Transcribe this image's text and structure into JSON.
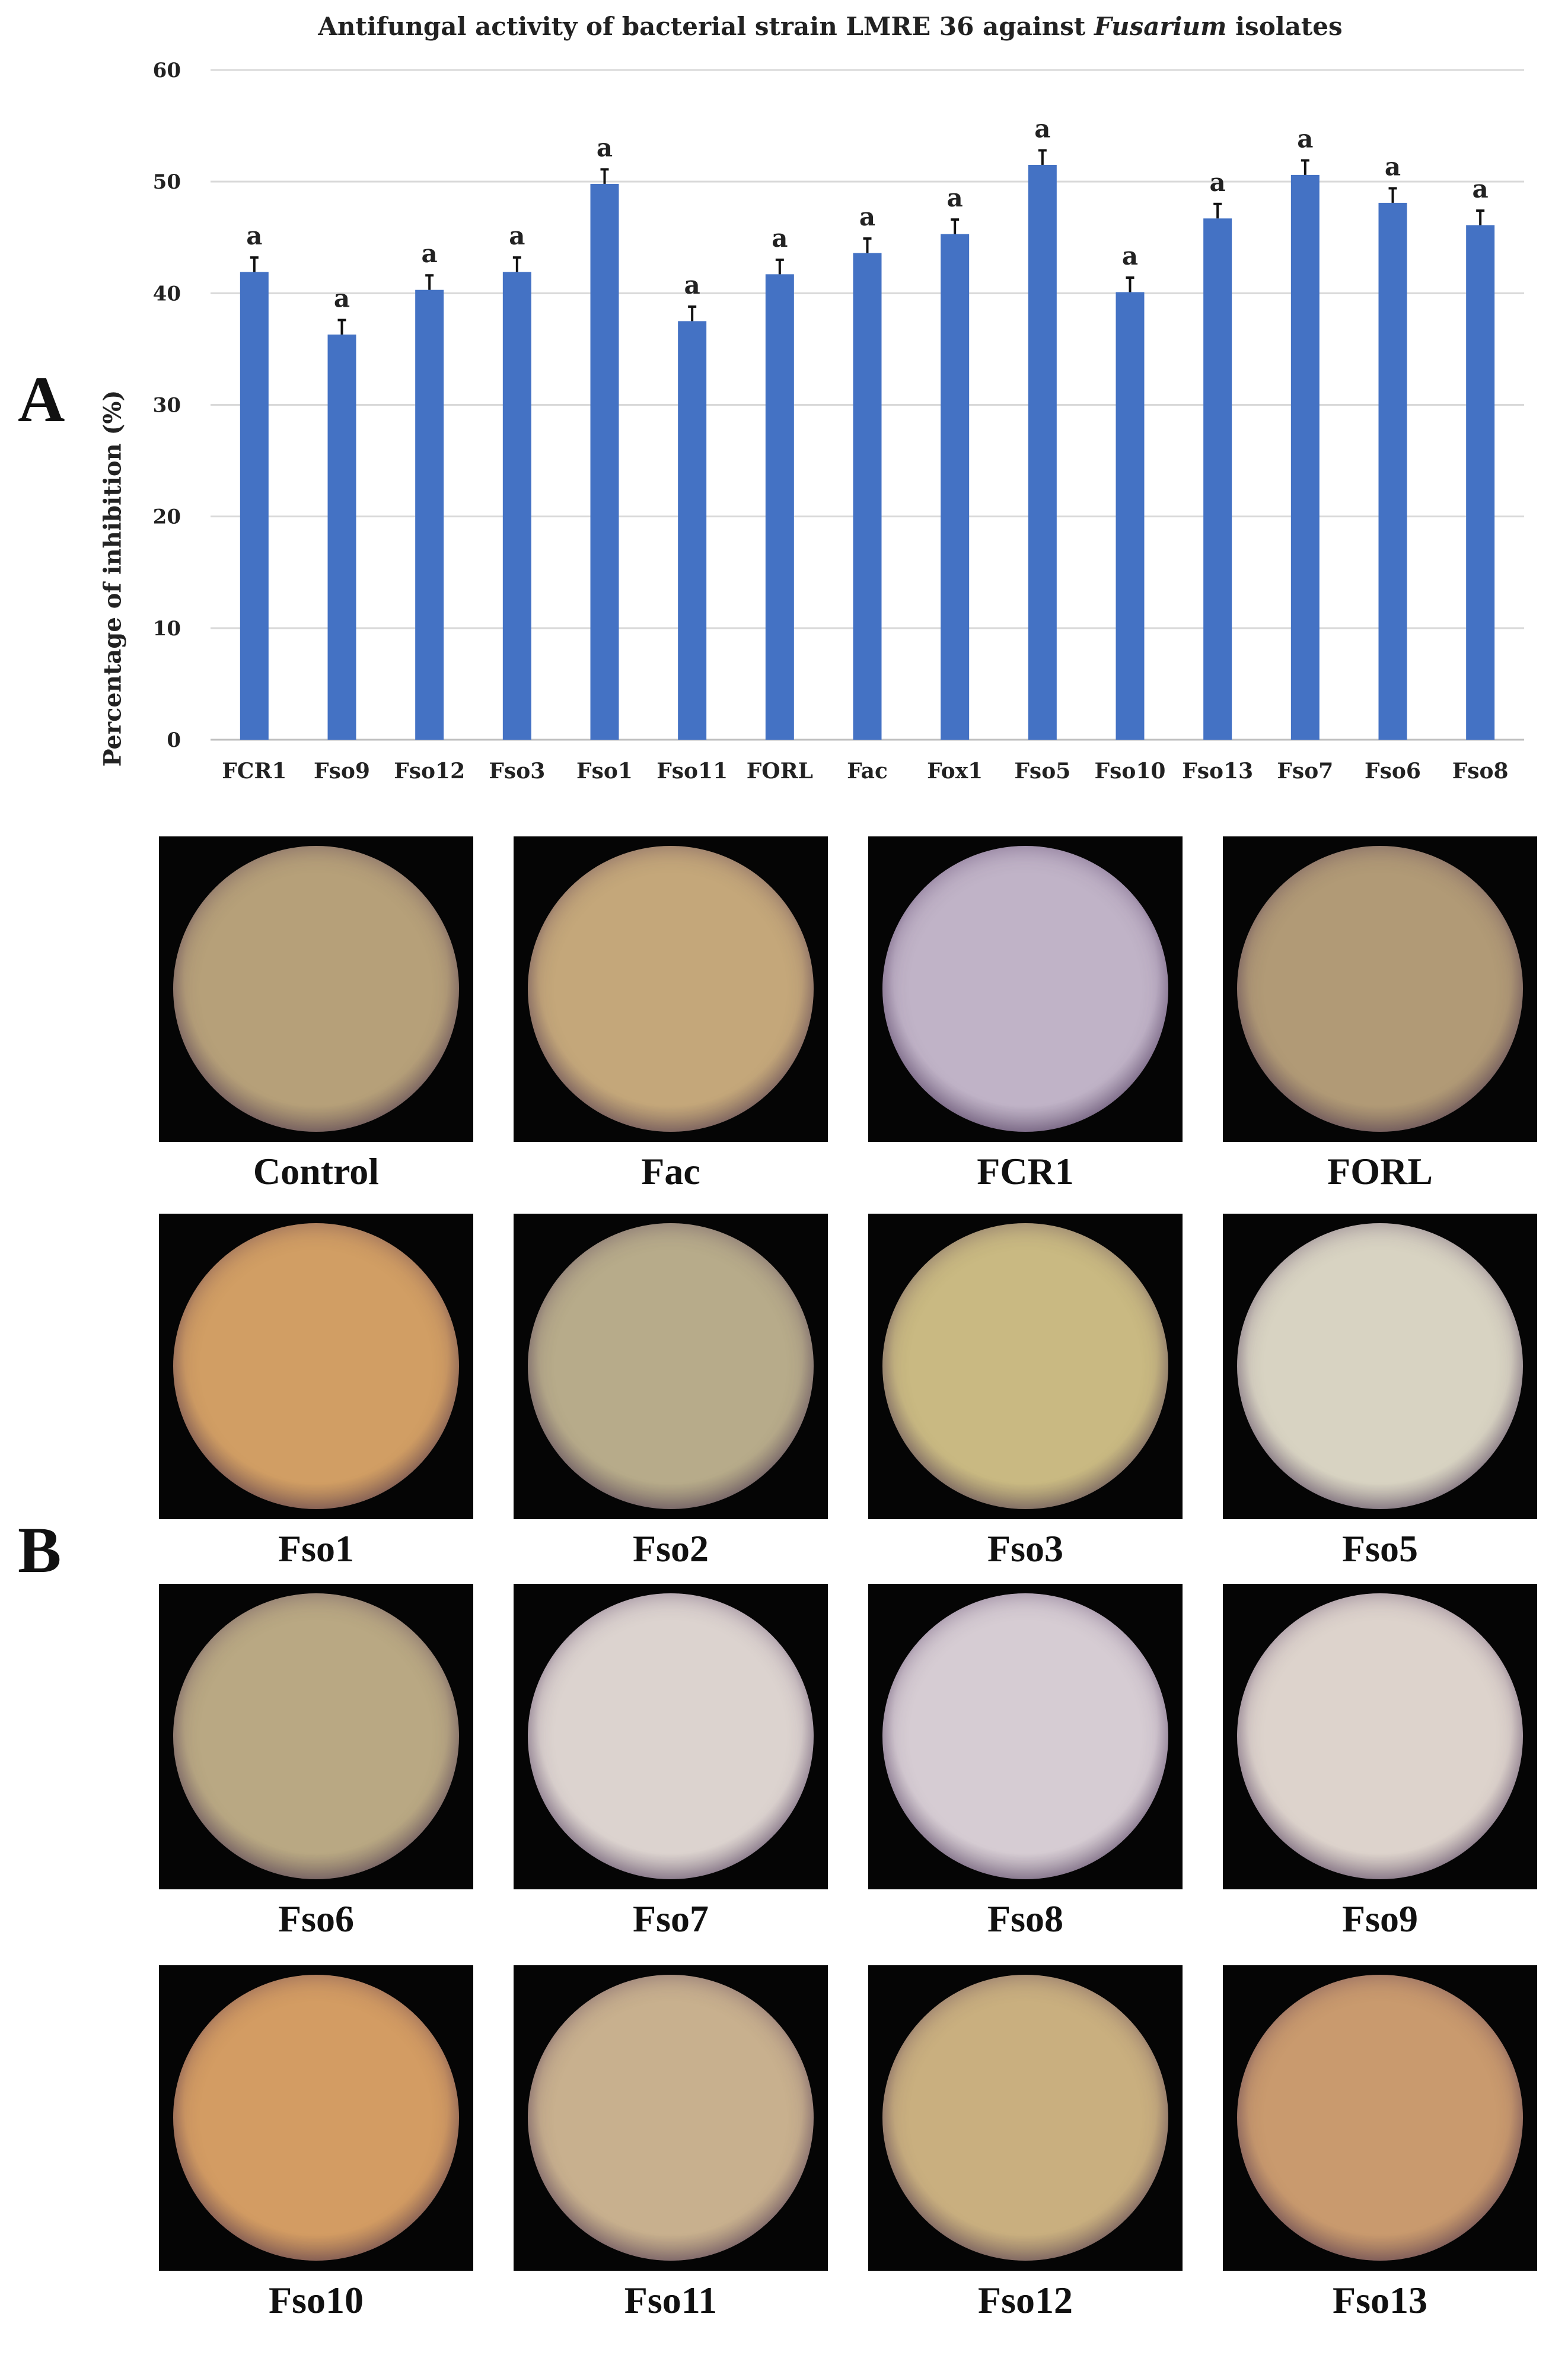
{
  "panel_labels": {
    "a": "A",
    "b": "B"
  },
  "chart_data": {
    "type": "bar",
    "title_before": "Antifungal activity of bacterial strain LMRE 36 against ",
    "title_italic": "Fusarium",
    "title_after": " isolates",
    "ylabel": "Percentage of inhibition (%)",
    "xlabel": "",
    "ylim": [
      0,
      60
    ],
    "yticks": [
      0,
      10,
      20,
      30,
      40,
      50,
      60
    ],
    "grid": true,
    "bar_color": "#4472C4",
    "categories": [
      "FCR1",
      "Fso9",
      "Fso12",
      "Fso3",
      "Fso1",
      "Fso11",
      "FORL",
      "Fac",
      "Fox1",
      "Fso5",
      "Fso10",
      "Fso13",
      "Fso7",
      "Fso6",
      "Fso8"
    ],
    "values": [
      41.9,
      36.3,
      40.3,
      41.9,
      49.8,
      37.5,
      41.7,
      43.6,
      45.3,
      51.5,
      40.1,
      46.7,
      50.6,
      48.1,
      46.1
    ],
    "errors": [
      1.3,
      1.3,
      1.3,
      1.3,
      1.3,
      1.3,
      1.3,
      1.3,
      1.3,
      1.3,
      1.3,
      1.3,
      1.3,
      1.3,
      1.3
    ],
    "significance": [
      "a",
      "a",
      "a",
      "a",
      "a",
      "a",
      "a",
      "a",
      "a",
      "a",
      "a",
      "a",
      "a",
      "a",
      "a"
    ]
  },
  "micrographs": [
    {
      "label": "Control",
      "color": "#b6a079"
    },
    {
      "label": "Fac",
      "color": "#c4a77a"
    },
    {
      "label": "FCR1",
      "color": "#c0b3c7"
    },
    {
      "label": "FORL",
      "color": "#b19a76"
    },
    {
      "label": "Fso1",
      "color": "#d19e64"
    },
    {
      "label": "Fso2",
      "color": "#b7ab8a"
    },
    {
      "label": "Fso3",
      "color": "#c9b982"
    },
    {
      "label": "Fso5",
      "color": "#d8d3c2"
    },
    {
      "label": "Fso6",
      "color": "#b9a883"
    },
    {
      "label": "Fso7",
      "color": "#dcd3cf"
    },
    {
      "label": "Fso8",
      "color": "#d6ccd3"
    },
    {
      "label": "Fso9",
      "color": "#ddd3cc"
    },
    {
      "label": "Fso10",
      "color": "#d39c63"
    },
    {
      "label": "Fso11",
      "color": "#c8b08e"
    },
    {
      "label": "Fso12",
      "color": "#c9af7f"
    },
    {
      "label": "Fso13",
      "color": "#c99a6e"
    }
  ]
}
